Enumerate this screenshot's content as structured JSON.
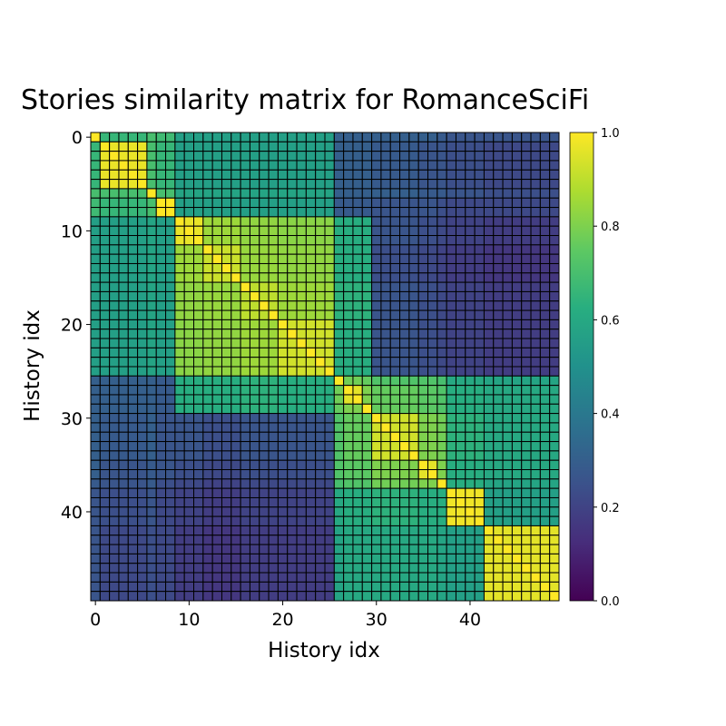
{
  "chart_data": {
    "type": "heatmap",
    "title": "Stories similarity matrix for RomanceSciFi",
    "xlabel": "History idx",
    "ylabel": "History idx",
    "size": 50,
    "xticks": [
      0,
      10,
      20,
      30,
      40
    ],
    "yticks": [
      0,
      10,
      20,
      30,
      40
    ],
    "colormap": "viridis",
    "cell_edge_color": "#000000",
    "colorbar": {
      "min": 0.0,
      "max": 1.0,
      "ticks": [
        "0.0",
        "0.2",
        "0.4",
        "0.6",
        "0.8",
        "1.0"
      ]
    },
    "clusters": [
      {
        "range": [
          0,
          0
        ],
        "self": 1.0
      },
      {
        "range": [
          1,
          5
        ],
        "self": 0.97
      },
      {
        "range": [
          6,
          6
        ],
        "self": 1.0
      },
      {
        "range": [
          7,
          8
        ],
        "self": 1.0
      },
      {
        "range": [
          9,
          11
        ],
        "self": 0.97
      },
      {
        "range": [
          12,
          15
        ],
        "self": 0.92
      },
      {
        "range": [
          16,
          19
        ],
        "self": 0.9
      },
      {
        "range": [
          20,
          25
        ],
        "self": 0.93
      },
      {
        "range": [
          26,
          26
        ],
        "self": 1.0
      },
      {
        "range": [
          27,
          28
        ],
        "self": 0.96
      },
      {
        "range": [
          29,
          29
        ],
        "self": 1.0
      },
      {
        "range": [
          30,
          34
        ],
        "self": 0.93
      },
      {
        "range": [
          35,
          36
        ],
        "self": 0.96
      },
      {
        "range": [
          37,
          37
        ],
        "self": 1.0
      },
      {
        "range": [
          38,
          41
        ],
        "self": 0.98
      },
      {
        "range": [
          42,
          49
        ],
        "self": 0.96
      }
    ],
    "cluster_similarity_rows": [
      [
        1.0,
        0.66,
        0.7,
        0.68,
        0.56,
        0.56,
        0.56,
        0.56,
        0.3,
        0.3,
        0.3,
        0.3,
        0.3,
        0.28,
        0.26,
        0.26
      ],
      [
        0.66,
        0.97,
        0.7,
        0.66,
        0.56,
        0.56,
        0.56,
        0.56,
        0.3,
        0.3,
        0.3,
        0.28,
        0.26,
        0.26,
        0.24,
        0.22
      ],
      [
        0.7,
        0.7,
        1.0,
        0.7,
        0.58,
        0.58,
        0.58,
        0.58,
        0.3,
        0.3,
        0.3,
        0.3,
        0.28,
        0.28,
        0.26,
        0.24
      ],
      [
        0.68,
        0.66,
        0.7,
        1.0,
        0.56,
        0.56,
        0.56,
        0.56,
        0.28,
        0.28,
        0.28,
        0.26,
        0.26,
        0.24,
        0.22,
        0.22
      ],
      [
        0.56,
        0.56,
        0.58,
        0.56,
        0.97,
        0.85,
        0.83,
        0.82,
        0.62,
        0.62,
        0.62,
        0.26,
        0.24,
        0.22,
        0.2,
        0.18
      ],
      [
        0.56,
        0.56,
        0.58,
        0.56,
        0.85,
        0.92,
        0.84,
        0.83,
        0.62,
        0.62,
        0.62,
        0.24,
        0.22,
        0.2,
        0.18,
        0.16
      ],
      [
        0.56,
        0.56,
        0.58,
        0.56,
        0.83,
        0.84,
        0.9,
        0.85,
        0.64,
        0.64,
        0.64,
        0.26,
        0.24,
        0.22,
        0.2,
        0.18
      ],
      [
        0.56,
        0.56,
        0.58,
        0.56,
        0.82,
        0.83,
        0.85,
        0.93,
        0.62,
        0.62,
        0.62,
        0.26,
        0.24,
        0.22,
        0.2,
        0.18
      ],
      [
        0.3,
        0.3,
        0.3,
        0.28,
        0.62,
        0.62,
        0.64,
        0.62,
        1.0,
        0.78,
        0.76,
        0.72,
        0.72,
        0.7,
        0.6,
        0.58
      ],
      [
        0.3,
        0.3,
        0.3,
        0.28,
        0.62,
        0.62,
        0.64,
        0.62,
        0.78,
        0.96,
        0.8,
        0.76,
        0.74,
        0.72,
        0.62,
        0.6
      ],
      [
        0.3,
        0.3,
        0.3,
        0.28,
        0.62,
        0.62,
        0.64,
        0.62,
        0.76,
        0.8,
        1.0,
        0.76,
        0.74,
        0.72,
        0.62,
        0.6
      ],
      [
        0.3,
        0.28,
        0.3,
        0.26,
        0.26,
        0.24,
        0.26,
        0.26,
        0.72,
        0.76,
        0.76,
        0.93,
        0.8,
        0.78,
        0.64,
        0.6
      ],
      [
        0.3,
        0.26,
        0.28,
        0.26,
        0.24,
        0.22,
        0.24,
        0.24,
        0.72,
        0.74,
        0.74,
        0.8,
        0.96,
        0.8,
        0.62,
        0.6
      ],
      [
        0.28,
        0.26,
        0.28,
        0.24,
        0.22,
        0.2,
        0.22,
        0.22,
        0.7,
        0.72,
        0.72,
        0.78,
        0.8,
        1.0,
        0.62,
        0.58
      ],
      [
        0.26,
        0.24,
        0.26,
        0.22,
        0.2,
        0.18,
        0.2,
        0.2,
        0.6,
        0.62,
        0.62,
        0.64,
        0.62,
        0.62,
        0.98,
        0.56
      ],
      [
        0.26,
        0.22,
        0.24,
        0.22,
        0.18,
        0.16,
        0.18,
        0.18,
        0.58,
        0.6,
        0.6,
        0.6,
        0.6,
        0.58,
        0.56,
        0.96
      ]
    ]
  }
}
